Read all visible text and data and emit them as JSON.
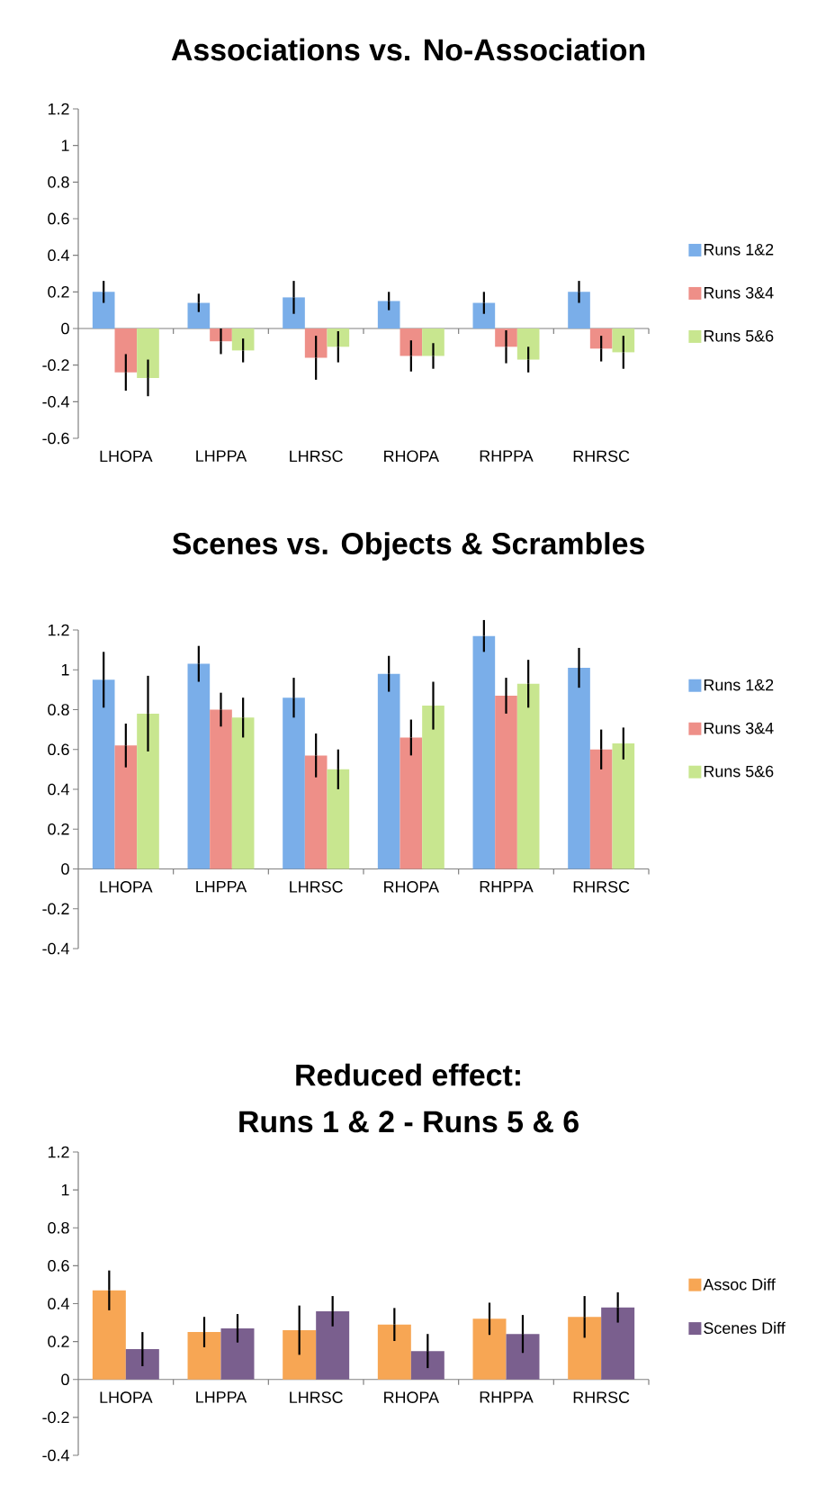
{
  "chart_data": [
    {
      "type": "bar",
      "title": "Associations vs. No-Association",
      "categories": [
        "LHOPA",
        "LHPPA",
        "LHRSC",
        "RHOPA",
        "RHPPA",
        "RHRSC"
      ],
      "series": [
        {
          "name": "Runs 1&2",
          "color": "#7aaee9",
          "values": [
            0.2,
            0.14,
            0.17,
            0.15,
            0.14,
            0.2
          ],
          "errors": [
            0.06,
            0.05,
            0.09,
            0.05,
            0.06,
            0.06
          ]
        },
        {
          "name": "Runs 3&4",
          "color": "#ee8f88",
          "values": [
            -0.24,
            -0.07,
            -0.16,
            -0.15,
            -0.1,
            -0.11
          ],
          "errors": [
            0.1,
            0.07,
            0.12,
            0.085,
            0.09,
            0.07
          ]
        },
        {
          "name": "Runs 5&6",
          "color": "#c8e68f",
          "values": [
            -0.27,
            -0.12,
            -0.1,
            -0.15,
            -0.17,
            -0.13
          ],
          "errors": [
            0.1,
            0.065,
            0.085,
            0.07,
            0.07,
            0.09
          ]
        }
      ],
      "ylim": [
        -0.6,
        1.2
      ],
      "yticks": [
        -0.6,
        -0.4,
        -0.2,
        0,
        0.2,
        0.4,
        0.6,
        0.8,
        1,
        1.2
      ],
      "legend": "right"
    },
    {
      "type": "bar",
      "title": "Scenes vs. Objects & Scrambles",
      "categories": [
        "LHOPA",
        "LHPPA",
        "LHRSC",
        "RHOPA",
        "RHPPA",
        "RHRSC"
      ],
      "series": [
        {
          "name": "Runs 1&2",
          "color": "#7aaee9",
          "values": [
            0.95,
            1.03,
            0.86,
            0.98,
            1.17,
            1.01
          ],
          "errors": [
            0.14,
            0.09,
            0.1,
            0.09,
            0.08,
            0.1
          ]
        },
        {
          "name": "Runs 3&4",
          "color": "#ee8f88",
          "values": [
            0.62,
            0.8,
            0.57,
            0.66,
            0.87,
            0.6
          ],
          "errors": [
            0.11,
            0.085,
            0.11,
            0.09,
            0.09,
            0.1
          ]
        },
        {
          "name": "Runs 5&6",
          "color": "#c8e68f",
          "values": [
            0.78,
            0.76,
            0.5,
            0.82,
            0.93,
            0.63
          ],
          "errors": [
            0.19,
            0.1,
            0.1,
            0.12,
            0.12,
            0.08
          ]
        }
      ],
      "ylim": [
        -0.4,
        1.2
      ],
      "yticks": [
        -0.4,
        -0.2,
        0,
        0.2,
        0.4,
        0.6,
        0.8,
        1,
        1.2
      ],
      "legend": "right"
    },
    {
      "type": "bar",
      "title": "Reduced effect:",
      "subtitle": "Runs 1 & 2 - Runs 5 & 6",
      "categories": [
        "LHOPA",
        "LHPPA",
        "LHRSC",
        "RHOPA",
        "RHPPA",
        "RHRSC"
      ],
      "series": [
        {
          "name": "Assoc Diff",
          "color": "#f7a654",
          "values": [
            0.47,
            0.25,
            0.26,
            0.29,
            0.32,
            0.33
          ],
          "errors": [
            0.105,
            0.08,
            0.13,
            0.087,
            0.085,
            0.11
          ]
        },
        {
          "name": "Scenes Diff",
          "color": "#7a5f8e",
          "values": [
            0.16,
            0.27,
            0.36,
            0.15,
            0.24,
            0.38
          ],
          "errors": [
            0.09,
            0.075,
            0.08,
            0.09,
            0.1,
            0.08
          ]
        }
      ],
      "ylim": [
        -0.4,
        1.2
      ],
      "yticks": [
        -0.4,
        -0.2,
        0,
        0.2,
        0.4,
        0.6,
        0.8,
        1,
        1.2
      ],
      "legend": "right"
    }
  ]
}
